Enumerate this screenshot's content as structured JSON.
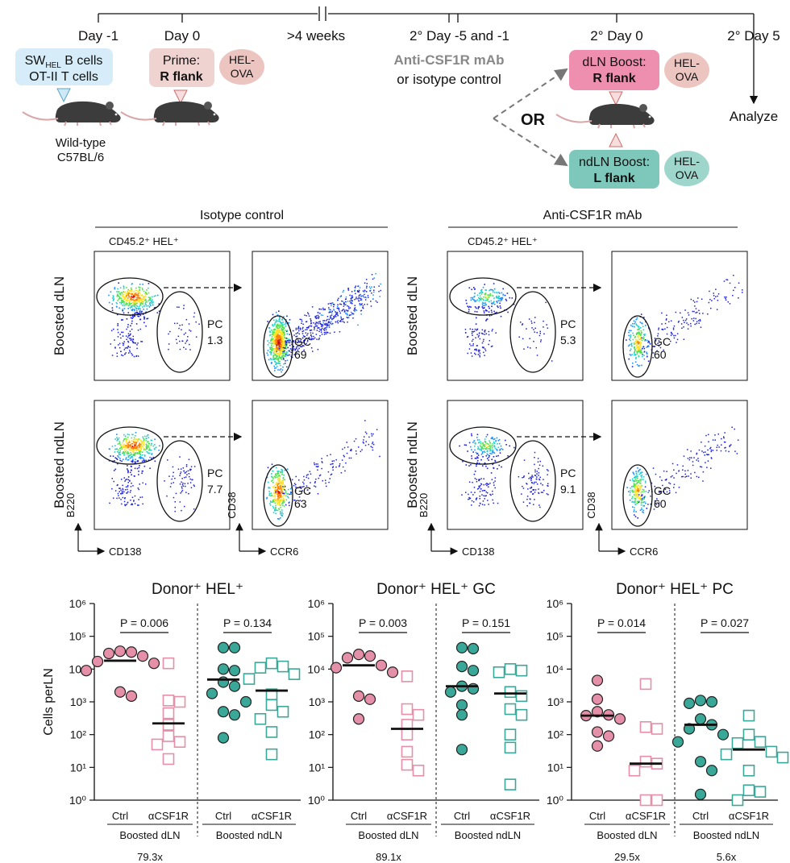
{
  "timeline": {
    "day_m1": "Day -1",
    "day_0": "Day 0",
    "weeks": ">4 weeks",
    "sec_day_m5": "2° Day -5 and -1",
    "sec_day_0": "2° Day 0",
    "sec_day_5": "2° Day 5",
    "donor_box": {
      "line1_main": "SW",
      "line1_sub": "HEL",
      "line1_end": " B cells",
      "line2": "OT-II T cells"
    },
    "mouse_label_1": "Wild-type",
    "mouse_label_2": "C57BL/6",
    "prime_box": {
      "line1": "Prime:",
      "line2": "R flank"
    },
    "hel_ova": {
      "line1": "HEL-",
      "line2": "OVA"
    },
    "treatment_1": "Anti-CSF1R mAb",
    "treatment_2": "or isotype control",
    "or_label": "OR",
    "dln_box": {
      "line1": "dLN Boost:",
      "line2": "R flank"
    },
    "ndln_box": {
      "line1": "ndLN Boost:",
      "line2": "L flank"
    },
    "analyze": "Analyze",
    "colors": {
      "blue_box": "#d6ecf8",
      "prime_box": "#efd3d0",
      "hel_pink": "#ecc5c0",
      "dln_box": "#ef8fb0",
      "ndln_box": "#7ec8bb",
      "hel_teal": "#9fd6cc"
    }
  },
  "flow": {
    "panels": [
      {
        "header": "Isotype control",
        "gate_title": "CD45.2⁺ HEL⁺",
        "rows": [
          {
            "row_label": "Boosted dLN",
            "pc_label": "PC",
            "pc_value": "1.3",
            "gc_label": "GC",
            "gc_value": "69"
          },
          {
            "row_label": "Boosted ndLN",
            "pc_label": "PC",
            "pc_value": "7.7",
            "gc_label": "GC",
            "gc_value": "63"
          }
        ]
      },
      {
        "header": "Anti-CSF1R mAb",
        "gate_title": "CD45.2⁺ HEL⁺",
        "rows": [
          {
            "row_label": "Boosted dLN",
            "pc_label": "PC",
            "pc_value": "5.3",
            "gc_label": "GC",
            "gc_value": "60"
          },
          {
            "row_label": "Boosted ndLN",
            "pc_label": "PC",
            "pc_value": "9.1",
            "gc_label": "GC",
            "gc_value": "60"
          }
        ]
      }
    ],
    "axis_b220": "B220",
    "axis_cd138": "CD138",
    "axis_cd38": "CD38",
    "axis_ccr6": "CCR6"
  },
  "chart_data": [
    {
      "type": "scatter",
      "title": "Donor⁺ HEL⁺",
      "ylabel": "Cells perLN",
      "yscale": "log",
      "ylim": [
        1,
        1000000
      ],
      "y_ticks": [
        "10⁰",
        "10¹",
        "10²",
        "10³",
        "10⁴",
        "10⁵",
        "10⁶"
      ],
      "categories": [
        "Ctrl",
        "αCSF1R",
        "Ctrl",
        "αCSF1R"
      ],
      "groups": [
        "Boosted dLN",
        "Boosted ndLN"
      ],
      "pvalues": [
        "P = 0.006",
        "P = 0.134"
      ],
      "fold_changes": [
        "79.3x",
        ""
      ],
      "series": [
        {
          "name": "Ctrl",
          "group": "Boosted dLN",
          "color": "#e58fa8",
          "filled": true,
          "median": 18000,
          "values": [
            35000,
            33000,
            30000,
            25000,
            17000,
            15000,
            9000,
            2000,
            1500
          ]
        },
        {
          "name": "αCSF1R",
          "group": "Boosted dLN",
          "color": "#e58fa8",
          "filled": false,
          "median": 220,
          "values": [
            15000,
            1100,
            1000,
            450,
            200,
            90,
            60,
            50,
            18
          ]
        },
        {
          "name": "Ctrl",
          "group": "Boosted ndLN",
          "color": "#3aa898",
          "filled": true,
          "median": 4800,
          "values": [
            45000,
            45000,
            10000,
            9000,
            4000,
            3000,
            1800,
            1000,
            500,
            400,
            80
          ]
        },
        {
          "name": "αCSF1R",
          "group": "Boosted ndLN",
          "color": "#3aa898",
          "filled": false,
          "median": 2200,
          "values": [
            15000,
            12000,
            11000,
            7000,
            5000,
            1700,
            800,
            500,
            300,
            120,
            25
          ]
        }
      ]
    },
    {
      "type": "scatter",
      "title": "Donor⁺ HEL⁺ GC",
      "ylabel": "",
      "yscale": "log",
      "ylim": [
        1,
        1000000
      ],
      "y_ticks": [
        "10⁰",
        "10¹",
        "10²",
        "10³",
        "10⁴",
        "10⁵",
        "10⁶"
      ],
      "categories": [
        "Ctrl",
        "αCSF1R",
        "Ctrl",
        "αCSF1R"
      ],
      "groups": [
        "Boosted dLN",
        "Boosted ndLN"
      ],
      "pvalues": [
        "P = 0.003",
        "P = 0.151"
      ],
      "fold_changes": [
        "89.1x",
        ""
      ],
      "series": [
        {
          "name": "Ctrl",
          "group": "Boosted dLN",
          "color": "#e58fa8",
          "filled": true,
          "median": 13000,
          "values": [
            28000,
            25000,
            22000,
            13000,
            11000,
            8000,
            1500,
            1200,
            300
          ]
        },
        {
          "name": "αCSF1R",
          "group": "Boosted dLN",
          "color": "#e58fa8",
          "filled": false,
          "median": 150,
          "values": [
            6000,
            600,
            400,
            200,
            100,
            30,
            12,
            8
          ]
        },
        {
          "name": "Ctrl",
          "group": "Boosted ndLN",
          "color": "#3aa898",
          "filled": true,
          "median": 3000,
          "values": [
            45000,
            42000,
            12000,
            9000,
            3000,
            2500,
            2000,
            800,
            400,
            35
          ]
        },
        {
          "name": "αCSF1R",
          "group": "Boosted ndLN",
          "color": "#3aa898",
          "filled": false,
          "median": 1800,
          "values": [
            10000,
            9000,
            8000,
            2000,
            1500,
            600,
            400,
            100,
            40,
            3
          ]
        }
      ]
    },
    {
      "type": "scatter",
      "title": "Donor⁺ HEL⁺ PC",
      "ylabel": "",
      "yscale": "log",
      "ylim": [
        1,
        1000000
      ],
      "y_ticks": [
        "10⁰",
        "10¹",
        "10²",
        "10³",
        "10⁴",
        "10⁵",
        "10⁶"
      ],
      "categories": [
        "Ctrl",
        "αCSF1R",
        "Ctrl",
        "αCSF1R"
      ],
      "groups": [
        "Boosted dLN",
        "Boosted ndLN"
      ],
      "pvalues": [
        "P = 0.014",
        "P = 0.027"
      ],
      "fold_changes": [
        "29.5x",
        "5.6x"
      ],
      "series": [
        {
          "name": "Ctrl",
          "group": "Boosted dLN",
          "color": "#e58fa8",
          "filled": true,
          "median": 380,
          "values": [
            4500,
            1200,
            500,
            400,
            380,
            300,
            120,
            90,
            45
          ]
        },
        {
          "name": "αCSF1R",
          "group": "Boosted dLN",
          "color": "#e58fa8",
          "filled": false,
          "median": 13,
          "values": [
            3500,
            170,
            150,
            15,
            13,
            8,
            1,
            1
          ]
        },
        {
          "name": "Ctrl",
          "group": "Boosted ndLN",
          "color": "#3aa898",
          "filled": true,
          "median": 200,
          "values": [
            1100,
            1000,
            900,
            300,
            200,
            150,
            100,
            60,
            15,
            8,
            1.5
          ]
        },
        {
          "name": "αCSF1R",
          "group": "Boosted ndLN",
          "color": "#3aa898",
          "filled": false,
          "median": 35,
          "values": [
            380,
            100,
            60,
            55,
            30,
            25,
            20,
            8,
            2,
            1.8,
            1
          ]
        }
      ]
    }
  ]
}
